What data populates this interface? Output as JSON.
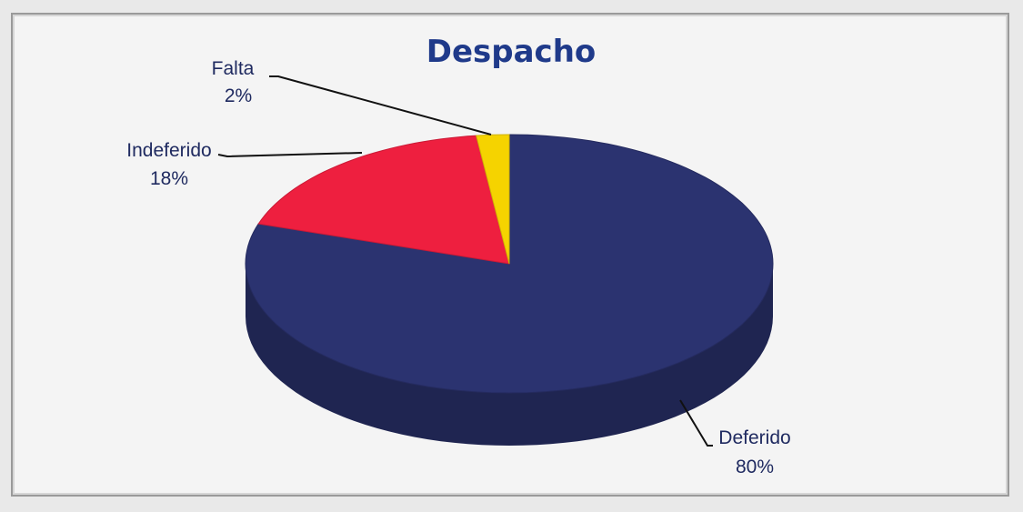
{
  "chart_data": {
    "type": "pie",
    "title": "Despacho",
    "slices": [
      {
        "name": "Deferido",
        "value": 80,
        "label": "80%",
        "color": "#2b3370"
      },
      {
        "name": "Indeferido",
        "value": 18,
        "label": "18%",
        "color": "#ee1f3f"
      },
      {
        "name": "Falta",
        "value": 2,
        "label": "2%",
        "color": "#f5d300"
      }
    ],
    "three_d": true
  },
  "colors": {
    "title": "#1f3a8a",
    "background": "#f4f4f4",
    "label_text": "#1f2a60",
    "leader_line": "#111111"
  }
}
